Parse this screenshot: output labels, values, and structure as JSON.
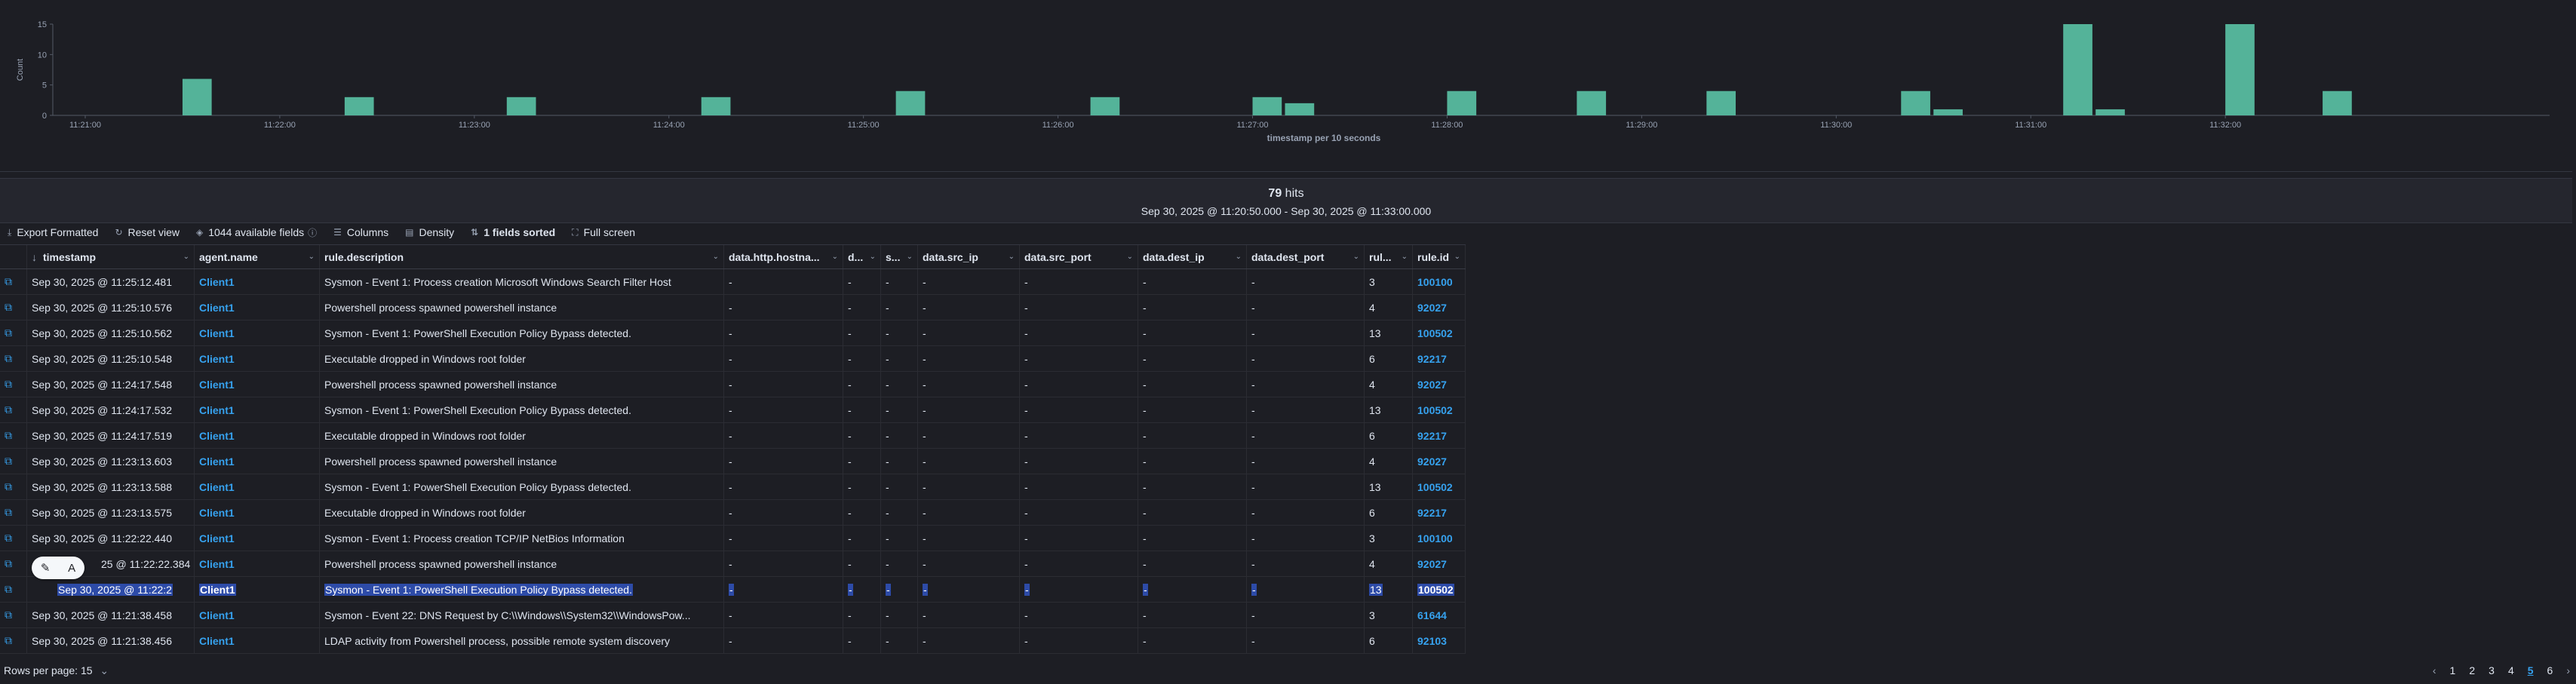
{
  "chart_data": {
    "type": "bar",
    "title": "",
    "xlabel": "timestamp per 10 seconds",
    "ylabel": "Count",
    "ylim": [
      0,
      15
    ],
    "yticks": [
      0,
      5,
      10,
      15
    ],
    "xticks": [
      "11:21:00",
      "11:22:00",
      "11:23:00",
      "11:24:00",
      "11:25:00",
      "11:26:00",
      "11:27:00",
      "11:28:00",
      "11:29:00",
      "11:30:00",
      "11:31:00",
      "11:32:00"
    ],
    "x_start": "11:20:50",
    "bucket_seconds": 10,
    "color": "#54b399",
    "bars": [
      {
        "x": "11:21:30",
        "y": 6
      },
      {
        "x": "11:22:20",
        "y": 3
      },
      {
        "x": "11:23:10",
        "y": 3
      },
      {
        "x": "11:24:10",
        "y": 3
      },
      {
        "x": "11:25:10",
        "y": 4
      },
      {
        "x": "11:26:10",
        "y": 3
      },
      {
        "x": "11:27:00",
        "y": 3
      },
      {
        "x": "11:27:10",
        "y": 2
      },
      {
        "x": "11:28:00",
        "y": 4
      },
      {
        "x": "11:28:40",
        "y": 4
      },
      {
        "x": "11:29:20",
        "y": 4
      },
      {
        "x": "11:30:20",
        "y": 4
      },
      {
        "x": "11:30:30",
        "y": 1
      },
      {
        "x": "11:31:10",
        "y": 15
      },
      {
        "x": "11:31:20",
        "y": 1
      },
      {
        "x": "11:32:00",
        "y": 15
      },
      {
        "x": "11:32:30",
        "y": 4
      }
    ]
  },
  "hits": {
    "count": "79",
    "label": "hits",
    "range": "Sep 30, 2025 @ 11:20:50.000 - Sep 30, 2025 @ 11:33:00.000"
  },
  "toolbar": {
    "export": "Export Formatted",
    "reset": "Reset view",
    "fields": "1044 available fields",
    "columns": "Columns",
    "density": "Density",
    "sorted": "1 fields sorted",
    "fullscreen": "Full screen"
  },
  "table": {
    "headers": [
      "timestamp",
      "agent.name",
      "rule.description",
      "data.http.hostna...",
      "d...",
      "s...",
      "data.src_ip",
      "data.src_port",
      "data.dest_ip",
      "data.dest_port",
      "rul...",
      "rule.id"
    ],
    "rows": [
      [
        "Sep 30, 2025 @ 11:25:12.481",
        "Client1",
        "Sysmon - Event 1: Process creation Microsoft Windows Search Filter Host",
        "-",
        "-",
        "-",
        "-",
        "-",
        "-",
        "-",
        "3",
        "100100"
      ],
      [
        "Sep 30, 2025 @ 11:25:10.576",
        "Client1",
        "Powershell process spawned powershell instance",
        "-",
        "-",
        "-",
        "-",
        "-",
        "-",
        "-",
        "4",
        "92027"
      ],
      [
        "Sep 30, 2025 @ 11:25:10.562",
        "Client1",
        "Sysmon - Event 1: PowerShell Execution Policy Bypass detected.",
        "-",
        "-",
        "-",
        "-",
        "-",
        "-",
        "-",
        "13",
        "100502"
      ],
      [
        "Sep 30, 2025 @ 11:25:10.548",
        "Client1",
        "Executable dropped in Windows root folder",
        "-",
        "-",
        "-",
        "-",
        "-",
        "-",
        "-",
        "6",
        "92217"
      ],
      [
        "Sep 30, 2025 @ 11:24:17.548",
        "Client1",
        "Powershell process spawned powershell instance",
        "-",
        "-",
        "-",
        "-",
        "-",
        "-",
        "-",
        "4",
        "92027"
      ],
      [
        "Sep 30, 2025 @ 11:24:17.532",
        "Client1",
        "Sysmon - Event 1: PowerShell Execution Policy Bypass detected.",
        "-",
        "-",
        "-",
        "-",
        "-",
        "-",
        "-",
        "13",
        "100502"
      ],
      [
        "Sep 30, 2025 @ 11:24:17.519",
        "Client1",
        "Executable dropped in Windows root folder",
        "-",
        "-",
        "-",
        "-",
        "-",
        "-",
        "-",
        "6",
        "92217"
      ],
      [
        "Sep 30, 2025 @ 11:23:13.603",
        "Client1",
        "Powershell process spawned powershell instance",
        "-",
        "-",
        "-",
        "-",
        "-",
        "-",
        "-",
        "4",
        "92027"
      ],
      [
        "Sep 30, 2025 @ 11:23:13.588",
        "Client1",
        "Sysmon - Event 1: PowerShell Execution Policy Bypass detected.",
        "-",
        "-",
        "-",
        "-",
        "-",
        "-",
        "-",
        "13",
        "100502"
      ],
      [
        "Sep 30, 2025 @ 11:23:13.575",
        "Client1",
        "Executable dropped in Windows root folder",
        "-",
        "-",
        "-",
        "-",
        "-",
        "-",
        "-",
        "6",
        "92217"
      ],
      [
        "Sep 30, 2025 @ 11:22:22.440",
        "Client1",
        "Sysmon - Event 1: Process creation TCP/IP NetBios Information",
        "-",
        "-",
        "-",
        "-",
        "-",
        "-",
        "-",
        "3",
        "100100"
      ],
      [
        "25 @ 11:22:22.384",
        "Client1",
        "Powershell process spawned powershell instance",
        "-",
        "-",
        "-",
        "-",
        "-",
        "-",
        "-",
        "4",
        "92027"
      ],
      [
        "Sep 30, 2025 @ 11:22:2",
        "Client1",
        "Sysmon - Event 1: PowerShell Execution Policy Bypass detected.",
        "-",
        "-",
        "-",
        "-",
        "-",
        "-",
        "-",
        "13",
        "100502"
      ],
      [
        "Sep 30, 2025 @ 11:21:38.458",
        "Client1",
        "Sysmon - Event 22: DNS Request by C:\\\\Windows\\\\System32\\\\WindowsPow...",
        "-",
        "-",
        "-",
        "-",
        "-",
        "-",
        "-",
        "3",
        "61644"
      ],
      [
        "Sep 30, 2025 @ 11:21:38.456",
        "Client1",
        "LDAP activity from Powershell process, possible remote system discovery",
        "-",
        "-",
        "-",
        "-",
        "-",
        "-",
        "-",
        "6",
        "92103"
      ]
    ],
    "selected_row": 12
  },
  "footer": {
    "rows_per_page": "Rows per page: 15",
    "pages": [
      "1",
      "2",
      "3",
      "4",
      "5",
      "6"
    ],
    "current_page": "5"
  },
  "icons": {
    "sort": "sort-descending-icon",
    "expand": "expand-row-icon",
    "export": "export-icon",
    "reset": "reset-icon",
    "fields": "fields-icon",
    "columns": "columns-icon",
    "density": "density-icon",
    "sorted": "sort-icon",
    "fullscreen": "fullscreen-icon"
  }
}
